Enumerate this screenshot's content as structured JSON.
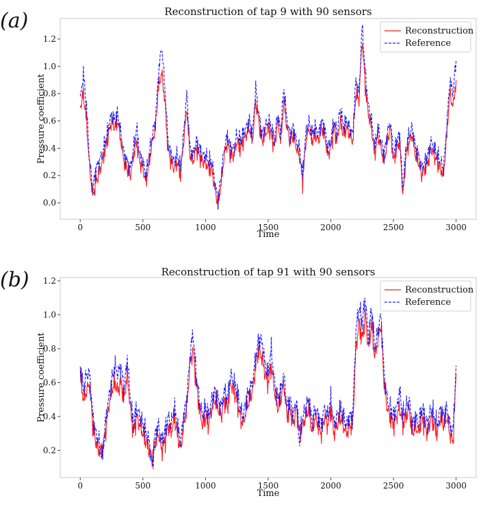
{
  "colors": {
    "reconstruction": "#ff1a1a",
    "reference": "#1a1aff"
  },
  "chart_data": [
    {
      "type": "line",
      "panel": "(a)",
      "title": "Reconstruction of tap 9 with 90 sensors",
      "xlabel": "Time",
      "ylabel": "Pressure coefficient",
      "xlim": [
        -160,
        3160
      ],
      "ylim": [
        -0.12,
        1.35
      ],
      "xticks": [
        0,
        500,
        1000,
        1500,
        2000,
        2500,
        3000
      ],
      "xtick_labels": [
        "0",
        "500",
        "1000",
        "1500",
        "2000",
        "2500",
        "3000"
      ],
      "yticks": [
        0.0,
        0.2,
        0.4,
        0.6,
        0.8,
        1.0,
        1.2
      ],
      "ytick_labels": [
        "0.0",
        "0.2",
        "0.4",
        "0.6",
        "0.8",
        "1.0",
        "1.2"
      ],
      "legend": [
        "Reconstruction",
        "Reference"
      ],
      "legend_position": "top-right",
      "series": [
        {
          "name": "Reconstruction",
          "style": "solid",
          "x": [
            0,
            25,
            50,
            75,
            100,
            125,
            150,
            175,
            200,
            225,
            250,
            275,
            300,
            325,
            350,
            375,
            400,
            425,
            450,
            475,
            500,
            525,
            550,
            575,
            600,
            625,
            650,
            675,
            700,
            725,
            750,
            775,
            800,
            825,
            850,
            875,
            900,
            925,
            950,
            975,
            1000,
            1025,
            1050,
            1075,
            1100,
            1125,
            1150,
            1175,
            1200,
            1225,
            1250,
            1275,
            1300,
            1325,
            1350,
            1375,
            1400,
            1425,
            1450,
            1475,
            1500,
            1525,
            1550,
            1575,
            1600,
            1625,
            1650,
            1675,
            1700,
            1725,
            1750,
            1775,
            1800,
            1825,
            1850,
            1875,
            1900,
            1925,
            1950,
            1975,
            2000,
            2025,
            2050,
            2075,
            2100,
            2125,
            2150,
            2175,
            2200,
            2225,
            2250,
            2275,
            2300,
            2325,
            2350,
            2375,
            2400,
            2425,
            2450,
            2475,
            2500,
            2525,
            2550,
            2575,
            2600,
            2625,
            2650,
            2675,
            2700,
            2725,
            2750,
            2775,
            2800,
            2825,
            2850,
            2875,
            2900,
            2925,
            2950,
            2975,
            3000
          ],
          "y": [
            0.7,
            0.8,
            0.6,
            0.25,
            0.05,
            0.15,
            0.22,
            0.3,
            0.4,
            0.5,
            0.6,
            0.55,
            0.6,
            0.45,
            0.3,
            0.25,
            0.2,
            0.35,
            0.45,
            0.3,
            0.25,
            0.15,
            0.3,
            0.45,
            0.55,
            0.85,
            0.95,
            0.75,
            0.4,
            0.3,
            0.25,
            0.3,
            0.2,
            0.45,
            0.7,
            0.35,
            0.3,
            0.4,
            0.35,
            0.3,
            0.3,
            0.25,
            0.25,
            0.1,
            -0.02,
            0.15,
            0.35,
            0.45,
            0.35,
            0.35,
            0.45,
            0.4,
            0.45,
            0.5,
            0.55,
            0.45,
            0.75,
            0.6,
            0.45,
            0.5,
            0.55,
            0.5,
            0.4,
            0.6,
            0.45,
            0.75,
            0.55,
            0.45,
            0.5,
            0.4,
            0.35,
            0.15,
            0.45,
            0.55,
            0.45,
            0.5,
            0.45,
            0.55,
            0.5,
            0.35,
            0.4,
            0.55,
            0.45,
            0.6,
            0.5,
            0.55,
            0.5,
            0.45,
            0.8,
            0.75,
            1.2,
            0.85,
            0.65,
            0.55,
            0.35,
            0.5,
            0.4,
            0.3,
            0.45,
            0.55,
            0.3,
            0.4,
            0.45,
            0.05,
            0.35,
            0.45,
            0.5,
            0.35,
            0.3,
            0.2,
            0.25,
            0.3,
            0.4,
            0.35,
            0.3,
            0.25,
            0.2,
            0.5,
            0.8,
            0.7,
            0.9
          ]
        },
        {
          "name": "Reference",
          "style": "dashed",
          "x": [
            0,
            25,
            50,
            75,
            100,
            125,
            150,
            175,
            200,
            225,
            250,
            275,
            300,
            325,
            350,
            375,
            400,
            425,
            450,
            475,
            500,
            525,
            550,
            575,
            600,
            625,
            650,
            675,
            700,
            725,
            750,
            775,
            800,
            825,
            850,
            875,
            900,
            925,
            950,
            975,
            1000,
            1025,
            1050,
            1075,
            1100,
            1125,
            1150,
            1175,
            1200,
            1225,
            1250,
            1275,
            1300,
            1325,
            1350,
            1375,
            1400,
            1425,
            1450,
            1475,
            1500,
            1525,
            1550,
            1575,
            1600,
            1625,
            1650,
            1675,
            1700,
            1725,
            1750,
            1775,
            1800,
            1825,
            1850,
            1875,
            1900,
            1925,
            1950,
            1975,
            2000,
            2025,
            2050,
            2075,
            2100,
            2125,
            2150,
            2175,
            2200,
            2225,
            2250,
            2275,
            2300,
            2325,
            2350,
            2375,
            2400,
            2425,
            2450,
            2475,
            2500,
            2525,
            2550,
            2575,
            2600,
            2625,
            2650,
            2675,
            2700,
            2725,
            2750,
            2775,
            2800,
            2825,
            2850,
            2875,
            2900,
            2925,
            2950,
            2975,
            3000
          ],
          "y": [
            0.75,
            0.95,
            0.7,
            0.3,
            0.1,
            0.25,
            0.3,
            0.35,
            0.45,
            0.55,
            0.65,
            0.6,
            0.65,
            0.5,
            0.35,
            0.3,
            0.25,
            0.4,
            0.55,
            0.35,
            0.3,
            0.2,
            0.35,
            0.5,
            0.6,
            0.95,
            1.15,
            0.85,
            0.45,
            0.35,
            0.3,
            0.35,
            0.25,
            0.5,
            0.8,
            0.4,
            0.35,
            0.45,
            0.4,
            0.35,
            0.35,
            0.3,
            0.3,
            0.15,
            0.02,
            0.2,
            0.4,
            0.5,
            0.4,
            0.4,
            0.5,
            0.45,
            0.5,
            0.55,
            0.6,
            0.5,
            0.85,
            0.65,
            0.5,
            0.55,
            0.6,
            0.55,
            0.45,
            0.65,
            0.5,
            0.85,
            0.6,
            0.5,
            0.55,
            0.45,
            0.4,
            0.2,
            0.5,
            0.6,
            0.5,
            0.55,
            0.5,
            0.6,
            0.55,
            0.4,
            0.45,
            0.6,
            0.5,
            0.7,
            0.55,
            0.6,
            0.55,
            0.5,
            0.9,
            0.8,
            1.3,
            0.95,
            0.7,
            0.6,
            0.4,
            0.55,
            0.45,
            0.35,
            0.5,
            0.6,
            0.35,
            0.45,
            0.5,
            0.1,
            0.4,
            0.5,
            0.55,
            0.4,
            0.35,
            0.25,
            0.3,
            0.35,
            0.45,
            0.4,
            0.35,
            0.3,
            0.25,
            0.55,
            0.9,
            0.8,
            1.05
          ]
        }
      ]
    },
    {
      "type": "line",
      "panel": "(b)",
      "title": "Reconstruction of tap 91 with 90 sensors",
      "xlabel": "Time",
      "ylabel": "Pressure coefficient",
      "xlim": [
        -160,
        3160
      ],
      "ylim": [
        0.04,
        1.22
      ],
      "xticks": [
        0,
        500,
        1000,
        1500,
        2000,
        2500,
        3000
      ],
      "xtick_labels": [
        "0",
        "500",
        "1000",
        "1500",
        "2000",
        "2500",
        "3000"
      ],
      "yticks": [
        0.2,
        0.4,
        0.6,
        0.8,
        1.0,
        1.2
      ],
      "ytick_labels": [
        "0.2",
        "0.4",
        "0.6",
        "0.8",
        "1.0",
        "1.2"
      ],
      "legend": [
        "Reconstruction",
        "Reference"
      ],
      "legend_position": "top-right",
      "series": [
        {
          "name": "Reconstruction",
          "style": "solid",
          "x": [
            0,
            25,
            50,
            75,
            100,
            125,
            150,
            175,
            200,
            225,
            250,
            275,
            300,
            325,
            350,
            375,
            400,
            425,
            450,
            475,
            500,
            525,
            550,
            575,
            600,
            625,
            650,
            675,
            700,
            725,
            750,
            775,
            800,
            825,
            850,
            875,
            900,
            925,
            950,
            975,
            1000,
            1025,
            1050,
            1075,
            1100,
            1125,
            1150,
            1175,
            1200,
            1225,
            1250,
            1275,
            1300,
            1325,
            1350,
            1375,
            1400,
            1425,
            1450,
            1475,
            1500,
            1525,
            1550,
            1575,
            1600,
            1625,
            1650,
            1675,
            1700,
            1725,
            1750,
            1775,
            1800,
            1825,
            1850,
            1875,
            1900,
            1925,
            1950,
            1975,
            2000,
            2025,
            2050,
            2075,
            2100,
            2125,
            2150,
            2175,
            2200,
            2225,
            2250,
            2275,
            2300,
            2325,
            2350,
            2375,
            2400,
            2425,
            2450,
            2475,
            2500,
            2525,
            2550,
            2575,
            2600,
            2625,
            2650,
            2675,
            2700,
            2725,
            2750,
            2775,
            2800,
            2825,
            2850,
            2875,
            2900,
            2925,
            2950,
            2975,
            3000
          ],
          "y": [
            0.65,
            0.5,
            0.55,
            0.6,
            0.35,
            0.25,
            0.2,
            0.2,
            0.3,
            0.45,
            0.55,
            0.6,
            0.55,
            0.6,
            0.5,
            0.65,
            0.45,
            0.3,
            0.4,
            0.35,
            0.3,
            0.25,
            0.2,
            0.15,
            0.25,
            0.3,
            0.2,
            0.25,
            0.35,
            0.3,
            0.4,
            0.3,
            0.2,
            0.35,
            0.45,
            0.7,
            0.8,
            0.6,
            0.45,
            0.35,
            0.4,
            0.35,
            0.45,
            0.5,
            0.45,
            0.4,
            0.5,
            0.45,
            0.6,
            0.55,
            0.5,
            0.4,
            0.35,
            0.45,
            0.5,
            0.55,
            0.7,
            0.8,
            0.75,
            0.65,
            0.6,
            0.7,
            0.55,
            0.45,
            0.5,
            0.6,
            0.4,
            0.45,
            0.35,
            0.45,
            0.3,
            0.35,
            0.4,
            0.45,
            0.3,
            0.4,
            0.35,
            0.3,
            0.4,
            0.35,
            0.45,
            0.3,
            0.35,
            0.4,
            0.35,
            0.3,
            0.35,
            0.35,
            0.8,
            0.95,
            0.85,
            1.0,
            0.8,
            0.95,
            0.75,
            0.85,
            0.95,
            0.6,
            0.45,
            0.4,
            0.35,
            0.4,
            0.45,
            0.35,
            0.4,
            0.45,
            0.3,
            0.35,
            0.3,
            0.4,
            0.35,
            0.3,
            0.4,
            0.35,
            0.3,
            0.4,
            0.35,
            0.4,
            0.3,
            0.25,
            0.65
          ]
        },
        {
          "name": "Reference",
          "style": "dashed",
          "x": [
            0,
            25,
            50,
            75,
            100,
            125,
            150,
            175,
            200,
            225,
            250,
            275,
            300,
            325,
            350,
            375,
            400,
            425,
            450,
            475,
            500,
            525,
            550,
            575,
            600,
            625,
            650,
            675,
            700,
            725,
            750,
            775,
            800,
            825,
            850,
            875,
            900,
            925,
            950,
            975,
            1000,
            1025,
            1050,
            1075,
            1100,
            1125,
            1150,
            1175,
            1200,
            1225,
            1250,
            1275,
            1300,
            1325,
            1350,
            1375,
            1400,
            1425,
            1450,
            1475,
            1500,
            1525,
            1550,
            1575,
            1600,
            1625,
            1650,
            1675,
            1700,
            1725,
            1750,
            1775,
            1800,
            1825,
            1850,
            1875,
            1900,
            1925,
            1950,
            1975,
            2000,
            2025,
            2050,
            2075,
            2100,
            2125,
            2150,
            2175,
            2200,
            2225,
            2250,
            2275,
            2300,
            2325,
            2350,
            2375,
            2400,
            2425,
            2450,
            2475,
            2500,
            2525,
            2550,
            2575,
            2600,
            2625,
            2650,
            2675,
            2700,
            2725,
            2750,
            2775,
            2800,
            2825,
            2850,
            2875,
            2900,
            2925,
            2950,
            2975,
            3000
          ],
          "y": [
            0.7,
            0.55,
            0.65,
            0.65,
            0.4,
            0.3,
            0.25,
            0.15,
            0.35,
            0.5,
            0.6,
            0.7,
            0.65,
            0.7,
            0.55,
            0.75,
            0.5,
            0.35,
            0.45,
            0.4,
            0.35,
            0.3,
            0.25,
            0.1,
            0.3,
            0.35,
            0.25,
            0.3,
            0.4,
            0.35,
            0.45,
            0.35,
            0.25,
            0.4,
            0.5,
            0.75,
            0.9,
            0.65,
            0.5,
            0.4,
            0.45,
            0.4,
            0.5,
            0.55,
            0.5,
            0.45,
            0.55,
            0.5,
            0.65,
            0.6,
            0.55,
            0.45,
            0.4,
            0.5,
            0.55,
            0.6,
            0.75,
            0.85,
            0.85,
            0.7,
            0.65,
            0.8,
            0.6,
            0.5,
            0.55,
            0.65,
            0.45,
            0.5,
            0.4,
            0.5,
            0.25,
            0.4,
            0.45,
            0.5,
            0.35,
            0.45,
            0.4,
            0.35,
            0.45,
            0.4,
            0.5,
            0.35,
            0.4,
            0.45,
            0.4,
            0.35,
            0.4,
            0.4,
            0.9,
            1.05,
            0.95,
            1.1,
            0.85,
            1.05,
            0.8,
            0.9,
            1.0,
            0.65,
            0.5,
            0.45,
            0.4,
            0.45,
            0.55,
            0.4,
            0.45,
            0.5,
            0.35,
            0.4,
            0.35,
            0.45,
            0.4,
            0.35,
            0.45,
            0.4,
            0.35,
            0.45,
            0.4,
            0.45,
            0.35,
            0.3,
            0.7
          ]
        }
      ]
    }
  ]
}
